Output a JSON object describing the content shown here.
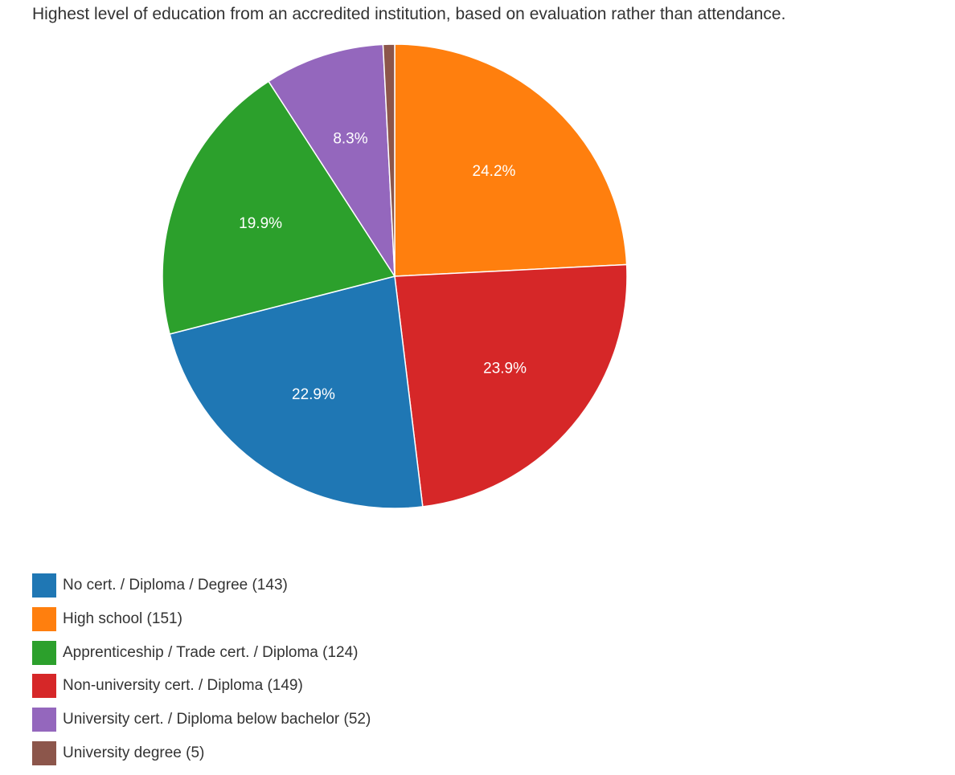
{
  "chart_data": {
    "type": "pie",
    "title": "Highest level of education from an accredited institution, based on evaluation rather than attendance.",
    "legend_position": "bottom-left",
    "slices": [
      {
        "name": "No cert. / Diploma / Degree",
        "value": 143,
        "legend_label": "No cert. / Diploma / Degree (143)",
        "percent_label": "22.9%",
        "color": "#1f77b4"
      },
      {
        "name": "High school",
        "value": 151,
        "legend_label": "High school (151)",
        "percent_label": "24.2%",
        "color": "#ff7f0e"
      },
      {
        "name": "Apprenticeship / Trade cert. / Diploma",
        "value": 124,
        "legend_label": "Apprenticeship / Trade cert. / Diploma (124)",
        "percent_label": "19.9%",
        "color": "#2ca02c"
      },
      {
        "name": "Non-university cert. / Diploma",
        "value": 149,
        "legend_label": "Non-university cert. / Diploma (149)",
        "percent_label": "23.9%",
        "color": "#d62728"
      },
      {
        "name": "University cert. / Diploma below bachelor",
        "value": 52,
        "legend_label": "University cert. / Diploma below bachelor (52)",
        "percent_label": "8.3%",
        "color": "#9467bd"
      },
      {
        "name": "University degree",
        "value": 5,
        "legend_label": "University degree (5)",
        "percent_label": "",
        "color": "#8c564b"
      }
    ]
  }
}
